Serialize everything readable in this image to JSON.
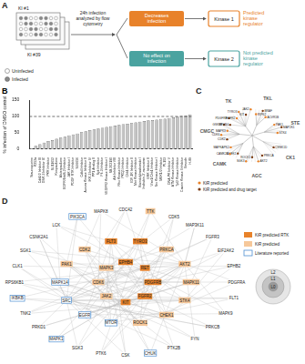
{
  "chart_data": {
    "type": "bar",
    "y_label": "% infection of DMSO control",
    "categories": [
      "Staurosporine",
      "K252a",
      "Cdk1/2 Inhibitor III",
      "GSK-3 Inhibitor IX",
      "PKR Inhibitor",
      "SU11652",
      "Kenpaullone",
      "Alsterpaullone",
      "EGFR/ErbB-2 Inhibitor",
      "JAK Inhibitor I",
      "PDGF RTK Inhibitor",
      "SU6656",
      "Cdk4 Inhibitor",
      "Aurora Kinase Inhibitor II",
      "IKK-2 Inhibitor IV",
      "PP1 Analog II",
      "Syk Inhibitor",
      "Flt-3 Inhibitor",
      "VEGFR2 Kinase Inhibitor I",
      "SB 202190",
      "Akt Inhibitor VIII",
      "Rho Kinase Inhibitor",
      "PKCβ Inhibitor",
      "Chk1 Inhibitor",
      "IGF-1R Inhibitor II",
      "Met Kinase Inhibitor",
      "Bisindolylmaleimide I",
      "Indirubin-3'-monoxime",
      "ERK Inhibitor II",
      "Wee1/Chk1 Inhibitor",
      "Src Kinase Inhibitor I",
      "MEK1/2 Inhibitor",
      "PI-103",
      "DNA-PK Inhibitor V",
      "ATM Kinase Inhibitor",
      "Tpl2 Kinase Inhibitor",
      "Casein Kinase I Inhibitor",
      "Emodin",
      "H-89"
    ],
    "values": [
      3,
      10,
      15,
      20,
      25,
      28,
      32,
      35,
      38,
      42,
      45,
      48,
      52,
      55,
      58,
      60,
      63,
      65,
      68,
      70,
      72,
      74,
      76,
      78,
      80,
      82,
      84,
      86,
      88,
      89,
      90,
      92,
      93,
      95,
      97,
      99,
      101,
      103,
      106
    ],
    "color": "#c4c4c4",
    "ylim": [
      0,
      150
    ],
    "yticks": [
      0,
      50,
      100,
      150
    ],
    "reference_line": 100,
    "grid": false
  },
  "panels": {
    "A": {
      "letter": "A",
      "plate_labels": [
        "KI #1",
        "KI #39"
      ],
      "step": "24h infection analyzed by flow cytometry",
      "legend": [
        {
          "label": "Uninfected",
          "color": "#ffffff"
        },
        {
          "label": "Infected",
          "color": "#8a8a8a"
        }
      ],
      "outcomes": [
        {
          "text": "Decreases infection",
          "kinase": "Kinase 1",
          "result": "Predicted kinase regulator",
          "color": "#e8822a"
        },
        {
          "text": "No effect on infection",
          "kinase": "Kinase 2",
          "result": "Not predicted kinase regulator",
          "color": "#4aa3a0"
        }
      ]
    },
    "B": {
      "letter": "B"
    },
    "C": {
      "letter": "C",
      "groups": [
        "TKL",
        "STE",
        "CK1",
        "AGC",
        "CAMK",
        "CMGC",
        "TK"
      ],
      "kinases": [
        {
          "name": "RIPK2",
          "group": "TKL",
          "drug_target": false
        },
        {
          "name": "BRAF",
          "group": "TKL",
          "drug_target": true
        },
        {
          "name": "ACVR1B",
          "group": "TKL",
          "drug_target": false
        },
        {
          "name": "PAK1",
          "group": "STE",
          "drug_target": false
        },
        {
          "name": "MAP2K1",
          "group": "STE",
          "drug_target": true
        },
        {
          "name": "STK4",
          "group": "STE",
          "drug_target": false
        },
        {
          "name": "CSNK1D",
          "group": "CK1",
          "drug_target": true
        },
        {
          "name": "PRKCA",
          "group": "AGC",
          "drug_target": true
        },
        {
          "name": "AKT2",
          "group": "AGC",
          "drug_target": false
        },
        {
          "name": "ROCK1",
          "group": "AGC",
          "drug_target": true
        },
        {
          "name": "SGK3",
          "group": "AGC",
          "drug_target": false
        },
        {
          "name": "CHEK1",
          "group": "CAMK",
          "drug_target": true
        },
        {
          "name": "CAMK2A",
          "group": "CAMK",
          "drug_target": false
        },
        {
          "name": "MAPKAPK2",
          "group": "CAMK",
          "drug_target": false
        },
        {
          "name": "CDK2",
          "group": "CMGC",
          "drug_target": true
        },
        {
          "name": "CDK6",
          "group": "CMGC",
          "drug_target": false
        },
        {
          "name": "MAPK3",
          "group": "CMGC",
          "drug_target": false
        },
        {
          "name": "GSK3B",
          "group": "CMGC",
          "drug_target": true
        },
        {
          "name": "EPHB4",
          "group": "TK",
          "drug_target": true
        },
        {
          "name": "PDGFRB",
          "group": "TK",
          "drug_target": true
        },
        {
          "name": "FGFR2",
          "group": "TK",
          "drug_target": false
        },
        {
          "name": "TYRO3",
          "group": "TK",
          "drug_target": false
        },
        {
          "name": "KIT",
          "group": "TK",
          "drug_target": true
        },
        {
          "name": "JAK2",
          "group": "TK",
          "drug_target": false
        }
      ],
      "legend": [
        {
          "label": "KiR predicted",
          "drug_target": false,
          "color": "#e8822a"
        },
        {
          "label": "KiR predicted and drug target",
          "drug_target": true,
          "color": "#7a3a10"
        }
      ]
    },
    "D": {
      "letter": "D",
      "legend": [
        {
          "kind": "rtk",
          "label": "KiR predicted RTK",
          "color": "#e8822a"
        },
        {
          "kind": "predicted",
          "label": "KiR predicted",
          "color": "#f6c89a"
        },
        {
          "kind": "literature",
          "label": "Literature reported",
          "color": "#4f8fd1"
        }
      ],
      "layers": [
        "L0",
        "L1",
        "L2"
      ],
      "nodes": [
        {
          "label": "EPHB4",
          "layer": "L0",
          "kind": "rtk"
        },
        {
          "label": "RET",
          "layer": "L0",
          "kind": "rtk"
        },
        {
          "label": "PDGFRB",
          "layer": "L0",
          "kind": "rtk"
        },
        {
          "label": "FGFR2",
          "layer": "L0",
          "kind": "rtk"
        },
        {
          "label": "KIT",
          "layer": "L0",
          "kind": "rtk"
        },
        {
          "label": "JAK2",
          "layer": "L0",
          "kind": "predicted"
        },
        {
          "label": "CDK6",
          "layer": "L0",
          "kind": "predicted"
        },
        {
          "label": "MAPK3",
          "layer": "L0",
          "kind": "predicted"
        },
        {
          "label": "TYRO3",
          "layer": "L1",
          "kind": "rtk"
        },
        {
          "label": "PRKCA",
          "layer": "L1",
          "kind": "predicted"
        },
        {
          "label": "AKT2",
          "layer": "L1",
          "kind": "predicted"
        },
        {
          "label": "MAPK11",
          "layer": "L1",
          "kind": "predicted"
        },
        {
          "label": "STK4",
          "layer": "L1",
          "kind": "predicted"
        },
        {
          "label": "CHEK1",
          "layer": "L1",
          "kind": "predicted"
        },
        {
          "label": "ROCK1",
          "layer": "L1",
          "kind": "predicted"
        },
        {
          "label": "MTOR",
          "layer": "L1",
          "kind": "literature"
        },
        {
          "label": "EGFR",
          "layer": "L1",
          "kind": "literature"
        },
        {
          "label": "SRC",
          "layer": "L1",
          "kind": "literature"
        },
        {
          "label": "MAPK14",
          "layer": "L1",
          "kind": "literature"
        },
        {
          "label": "PAK1",
          "layer": "L1",
          "kind": "predicted"
        },
        {
          "label": "CDK2",
          "layer": "L1",
          "kind": "predicted"
        },
        {
          "label": "FLT3",
          "layer": "L1",
          "kind": "rtk"
        },
        {
          "label": "TTK",
          "layer": "L2",
          "kind": "predicted"
        },
        {
          "label": "CDK5",
          "layer": "L2",
          "kind": null
        },
        {
          "label": "MAP3K11",
          "layer": "L2",
          "kind": null
        },
        {
          "label": "FGFR3",
          "layer": "L2",
          "kind": null
        },
        {
          "label": "EIF2AK2",
          "layer": "L2",
          "kind": null
        },
        {
          "label": "EPHB2",
          "layer": "L2",
          "kind": null
        },
        {
          "label": "PDGFRA",
          "layer": "L2",
          "kind": null
        },
        {
          "label": "FLT1",
          "layer": "L2",
          "kind": null
        },
        {
          "label": "MAPK9",
          "layer": "L2",
          "kind": null
        },
        {
          "label": "PRKCB",
          "layer": "L2",
          "kind": null
        },
        {
          "label": "FYN",
          "layer": "L2",
          "kind": null
        },
        {
          "label": "PTK2B",
          "layer": "L2",
          "kind": null
        },
        {
          "label": "CHUK",
          "layer": "L2",
          "kind": "literature"
        },
        {
          "label": "CSK",
          "layer": "L2",
          "kind": null
        },
        {
          "label": "PTK6",
          "layer": "L2",
          "kind": null
        },
        {
          "label": "SGK3",
          "layer": "L2",
          "kind": null
        },
        {
          "label": "MAPK1",
          "layer": "L2",
          "kind": "literature"
        },
        {
          "label": "PRKD1",
          "layer": "L2",
          "kind": null
        },
        {
          "label": "TNK2",
          "layer": "L2",
          "kind": null
        },
        {
          "label": "IKBKB",
          "layer": "L2",
          "kind": "literature"
        },
        {
          "label": "RPS6KB1",
          "layer": "L2",
          "kind": null
        },
        {
          "label": "CLK1",
          "layer": "L2",
          "kind": null
        },
        {
          "label": "SGK1",
          "layer": "L2",
          "kind": null
        },
        {
          "label": "CSNK2A1",
          "layer": "L2",
          "kind": null
        },
        {
          "label": "LCK",
          "layer": "L2",
          "kind": null
        },
        {
          "label": "PIK3CA",
          "layer": "L2",
          "kind": "literature"
        },
        {
          "label": "MAPK8",
          "layer": "L2",
          "kind": null
        },
        {
          "label": "CDC42",
          "layer": "L2",
          "kind": null
        }
      ]
    }
  }
}
